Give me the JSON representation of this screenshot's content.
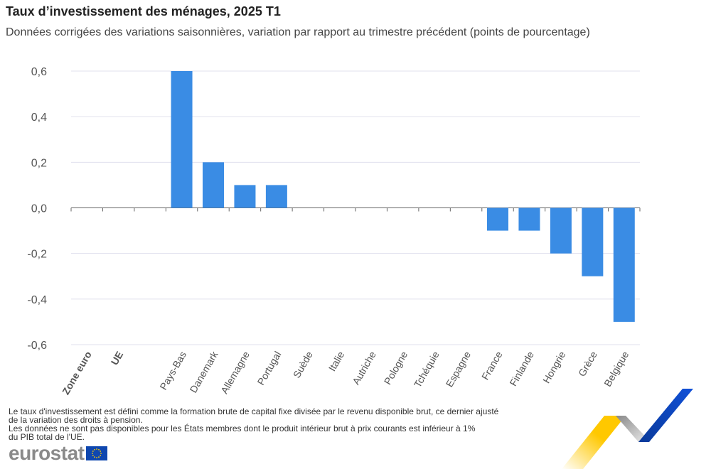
{
  "title": "Taux d’investissement des ménages, 2025 T1",
  "subtitle": "Données corrigées des variations saisonnières, variation par rapport au trimestre précédent (points de pourcentage)",
  "notes": [
    "Le taux d'investissement est défini comme la formation brute de capital fixe divisée par le revenu disponible brut, ce dernier ajusté",
    "de la variation des droits à pension.",
    "Les données ne sont pas disponibles pour les États membres dont le produit intérieur brut à prix courants est inférieur à 1%",
    "du PIB total de l'UE."
  ],
  "logo": "eurostat",
  "chart_data": {
    "type": "bar",
    "title": "Taux d’investissement des ménages, 2025 T1",
    "subtitle": "Données corrigées des variations saisonnières, variation par rapport au trimestre précédent (points de pourcentage)",
    "categories": [
      "Zone euro",
      "UE",
      "",
      "Pays-Bas",
      "Danemark",
      "Allemagne",
      "Portugal",
      "Suède",
      "Italie",
      "Autriche",
      "Pologne",
      "Tchéquie",
      "Espagne",
      "France",
      "Finlande",
      "Hongrie",
      "Grèce",
      "Belgique"
    ],
    "bold_categories": [
      "Zone euro",
      "UE"
    ],
    "values": [
      0,
      0,
      null,
      0.6,
      0.2,
      0.1,
      0.1,
      0,
      0,
      0,
      0,
      0,
      0,
      -0.1,
      -0.1,
      -0.2,
      -0.3,
      -0.5
    ],
    "ylim": [
      -0.6,
      0.6
    ],
    "yticks": [
      "-0,6",
      "-0,4",
      "-0,2",
      "0,0",
      "0,2",
      "0,4",
      "0,6"
    ],
    "ytick_values": [
      -0.6,
      -0.4,
      -0.2,
      0,
      0.2,
      0.4,
      0.6
    ],
    "grid": true,
    "bar_color": "#3a8ce4",
    "xlabel": "",
    "ylabel": ""
  }
}
